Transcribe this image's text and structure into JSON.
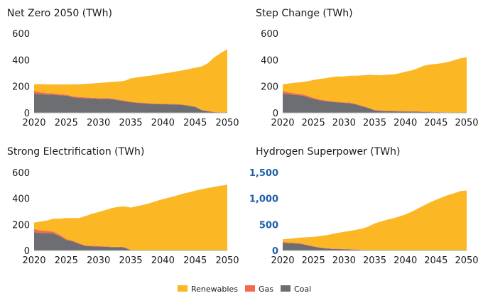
{
  "colors": {
    "renewables": "#fbb724",
    "gas": "#f26b4f",
    "coal": "#6d6e71",
    "axis": "#b0b0b0",
    "tick_default": "#1a1a1a",
    "tick_blue": "#1f5fa8"
  },
  "legend": {
    "items": [
      {
        "key": "renewables",
        "label": "Renewables"
      },
      {
        "key": "gas",
        "label": "Gas"
      },
      {
        "key": "coal",
        "label": "Coal"
      }
    ]
  },
  "chart_data": [
    {
      "type": "area",
      "stacked": true,
      "title": "Net Zero 2050 (TWh)",
      "x": [
        2020,
        2021,
        2022,
        2023,
        2024,
        2025,
        2026,
        2027,
        2028,
        2029,
        2030,
        2031,
        2032,
        2033,
        2034,
        2035,
        2036,
        2037,
        2038,
        2039,
        2040,
        2041,
        2042,
        2043,
        2044,
        2045,
        2046,
        2047,
        2048,
        2049,
        2050
      ],
      "x_ticks": [
        2020,
        2025,
        2030,
        2035,
        2040,
        2045,
        2050
      ],
      "y_ticks": [
        0,
        200,
        400,
        600
      ],
      "y_tick_labels": [
        "0",
        "200",
        "400",
        "600"
      ],
      "y_tick_style": "default",
      "ylim": [
        0,
        600
      ],
      "series": [
        {
          "name": "Coal",
          "key": "coal",
          "values": [
            145,
            140,
            137,
            137,
            132,
            130,
            118,
            113,
            110,
            108,
            106,
            106,
            103,
            95,
            88,
            80,
            75,
            72,
            68,
            66,
            65,
            64,
            63,
            60,
            52,
            45,
            20,
            12,
            5,
            2,
            0
          ]
        },
        {
          "name": "Gas",
          "key": "gas",
          "values": [
            20,
            15,
            12,
            10,
            9,
            8,
            7,
            7,
            6,
            6,
            5,
            5,
            5,
            5,
            5,
            4,
            4,
            4,
            4,
            4,
            4,
            4,
            4,
            4,
            4,
            3,
            3,
            3,
            2,
            2,
            2
          ]
        },
        {
          "name": "Renewables",
          "key": "renewables",
          "values": [
            50,
            62,
            66,
            68,
            74,
            77,
            90,
            96,
            102,
            108,
            114,
            118,
            125,
            136,
            148,
            176,
            189,
            199,
            208,
            218,
            228,
            235,
            245,
            256,
            274,
            292,
            327,
            360,
            413,
            448,
            478
          ]
        }
      ]
    },
    {
      "type": "area",
      "stacked": true,
      "title": "Step Change (TWh)",
      "x": [
        2020,
        2021,
        2022,
        2023,
        2024,
        2025,
        2026,
        2027,
        2028,
        2029,
        2030,
        2031,
        2032,
        2033,
        2034,
        2035,
        2036,
        2037,
        2038,
        2039,
        2040,
        2041,
        2042,
        2043,
        2044,
        2045,
        2046,
        2047,
        2048,
        2049,
        2050
      ],
      "x_ticks": [
        2020,
        2025,
        2030,
        2035,
        2040,
        2045,
        2050
      ],
      "y_ticks": [
        0,
        200,
        400,
        600
      ],
      "y_tick_labels": [
        "0",
        "200",
        "400",
        "600"
      ],
      "y_tick_style": "default",
      "ylim": [
        0,
        600
      ],
      "series": [
        {
          "name": "Coal",
          "key": "coal",
          "values": [
            145,
            140,
            135,
            132,
            120,
            105,
            95,
            88,
            82,
            78,
            75,
            72,
            62,
            48,
            35,
            18,
            15,
            12,
            12,
            10,
            10,
            8,
            8,
            6,
            5,
            3,
            2,
            1,
            0,
            0,
            0
          ]
        },
        {
          "name": "Gas",
          "key": "gas",
          "values": [
            20,
            15,
            12,
            10,
            9,
            8,
            7,
            6,
            6,
            5,
            5,
            5,
            5,
            5,
            4,
            4,
            4,
            4,
            4,
            3,
            3,
            3,
            3,
            3,
            3,
            3,
            2,
            2,
            2,
            2,
            2
          ]
        },
        {
          "name": "Renewables",
          "key": "renewables",
          "values": [
            50,
            67,
            80,
            90,
            109,
            135,
            153,
            168,
            182,
            192,
            195,
            203,
            213,
            230,
            248,
            263,
            265,
            272,
            274,
            285,
            297,
            309,
            325,
            346,
            357,
            363,
            371,
            381,
            395,
            410,
            418
          ]
        }
      ]
    },
    {
      "type": "area",
      "stacked": true,
      "title": "Strong Electrification (TWh)",
      "x": [
        2020,
        2021,
        2022,
        2023,
        2024,
        2025,
        2026,
        2027,
        2028,
        2029,
        2030,
        2031,
        2032,
        2033,
        2034,
        2035,
        2036,
        2037,
        2038,
        2039,
        2040,
        2041,
        2042,
        2043,
        2044,
        2045,
        2046,
        2047,
        2048,
        2049,
        2050
      ],
      "x_ticks": [
        2020,
        2025,
        2030,
        2035,
        2040,
        2045,
        2050
      ],
      "y_ticks": [
        0,
        200,
        400,
        600
      ],
      "y_tick_labels": [
        "0",
        "200",
        "400",
        "600"
      ],
      "y_tick_style": "default",
      "ylim": [
        0,
        600
      ],
      "series": [
        {
          "name": "Coal",
          "key": "coal",
          "values": [
            140,
            135,
            135,
            130,
            110,
            80,
            70,
            50,
            35,
            32,
            30,
            28,
            26,
            25,
            24,
            2,
            1,
            0,
            0,
            0,
            0,
            0,
            0,
            0,
            0,
            0,
            0,
            0,
            0,
            0,
            0
          ]
        },
        {
          "name": "Gas",
          "key": "gas",
          "values": [
            25,
            20,
            15,
            15,
            10,
            8,
            6,
            5,
            4,
            4,
            4,
            4,
            3,
            3,
            3,
            3,
            3,
            3,
            3,
            2,
            2,
            2,
            2,
            2,
            2,
            2,
            2,
            2,
            2,
            2,
            2
          ]
        },
        {
          "name": "Renewables",
          "key": "renewables",
          "values": [
            50,
            67,
            80,
            100,
            125,
            162,
            174,
            195,
            226,
            246,
            261,
            278,
            296,
            307,
            313,
            325,
            337,
            347,
            362,
            378,
            393,
            405,
            418,
            433,
            445,
            458,
            468,
            478,
            488,
            496,
            503
          ]
        }
      ]
    },
    {
      "type": "area",
      "stacked": true,
      "title": "Hydrogen Superpower (TWh)",
      "x": [
        2020,
        2021,
        2022,
        2023,
        2024,
        2025,
        2026,
        2027,
        2028,
        2029,
        2030,
        2031,
        2032,
        2033,
        2034,
        2035,
        2036,
        2037,
        2038,
        2039,
        2040,
        2041,
        2042,
        2043,
        2044,
        2045,
        2046,
        2047,
        2048,
        2049,
        2050
      ],
      "x_ticks": [
        2020,
        2025,
        2030,
        2035,
        2040,
        2045,
        2050
      ],
      "y_ticks": [
        0,
        500,
        1000,
        1500
      ],
      "y_tick_labels": [
        "0",
        "500",
        "1,000",
        "1,500"
      ],
      "y_tick_style": "blue",
      "ylim": [
        0,
        1500
      ],
      "series": [
        {
          "name": "Coal",
          "key": "coal",
          "values": [
            145,
            140,
            135,
            125,
            100,
            75,
            55,
            40,
            32,
            28,
            25,
            20,
            15,
            10,
            8,
            5,
            3,
            2,
            0,
            0,
            0,
            0,
            0,
            0,
            0,
            0,
            0,
            0,
            0,
            0,
            0
          ]
        },
        {
          "name": "Gas",
          "key": "gas",
          "values": [
            20,
            15,
            12,
            10,
            9,
            8,
            7,
            6,
            6,
            5,
            5,
            5,
            5,
            5,
            4,
            4,
            4,
            4,
            4,
            3,
            3,
            3,
            3,
            3,
            3,
            3,
            2,
            2,
            2,
            2,
            2
          ]
        },
        {
          "name": "Renewables",
          "key": "renewables",
          "values": [
            50,
            70,
            90,
            115,
            145,
            180,
            215,
            245,
            275,
            305,
            330,
            350,
            380,
            405,
            450,
            510,
            550,
            585,
            615,
            650,
            690,
            740,
            800,
            860,
            920,
            970,
            1020,
            1065,
            1100,
            1140,
            1150
          ]
        }
      ]
    }
  ]
}
